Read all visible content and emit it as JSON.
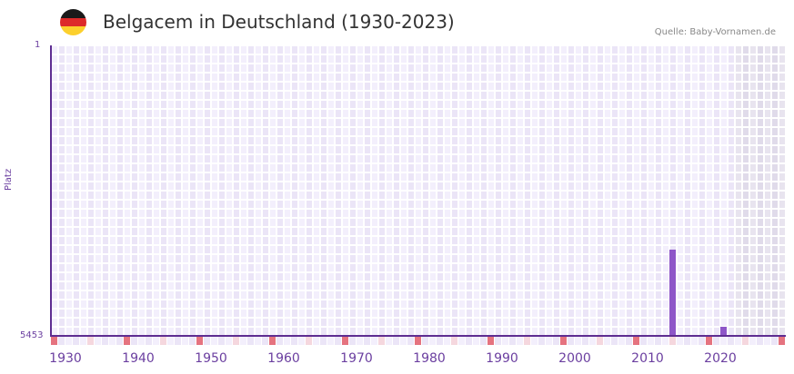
{
  "header": {
    "title": "Belgacem in Deutschland (1930-2023)",
    "source": "Quelle: Baby-Vornamen.de",
    "flag_icon": "germany-flag-icon",
    "flag_colors": [
      "#1a1a1a",
      "#dd2a2a",
      "#fcd02d"
    ]
  },
  "colors": {
    "bar": "#8e56c8",
    "axis": "#5e2d91",
    "label": "#6b3fa0",
    "cell_light": "#f3effc",
    "cell_dark": "#ebe5f7",
    "cell_future_light": "#e8e4ef",
    "cell_future_dark": "#e0dbea",
    "marker_decade": "#e5737f",
    "marker_half": "#f5d7de",
    "marker_plain_light": "#f3effc",
    "marker_plain_dark": "#ebe5f7"
  },
  "chart_data": {
    "type": "bar",
    "title": "Belgacem in Deutschland (1930-2023)",
    "xlabel": "",
    "ylabel": "Platz",
    "y_inverted": true,
    "ylim": [
      1,
      5453
    ],
    "y_ticks": [
      "1",
      "5453"
    ],
    "x_range": [
      1928,
      2028
    ],
    "x_ticks": [
      "1930",
      "1940",
      "1950",
      "1960",
      "1970",
      "1980",
      "1990",
      "2000",
      "2010",
      "2020"
    ],
    "grid": true,
    "future_shaded_from": 2022,
    "categories": [
      "2013",
      "2020"
    ],
    "series": [
      {
        "name": "Platz",
        "values": [
          3830,
          5280
        ]
      }
    ],
    "annotation": "Quelle: Baby-Vornamen.de"
  },
  "axes": {
    "y_title": "Platz",
    "y_top": "1",
    "y_bottom": "5453",
    "x_labels": [
      "1930",
      "1940",
      "1950",
      "1960",
      "1970",
      "1980",
      "1990",
      "2000",
      "2010",
      "2020"
    ]
  }
}
